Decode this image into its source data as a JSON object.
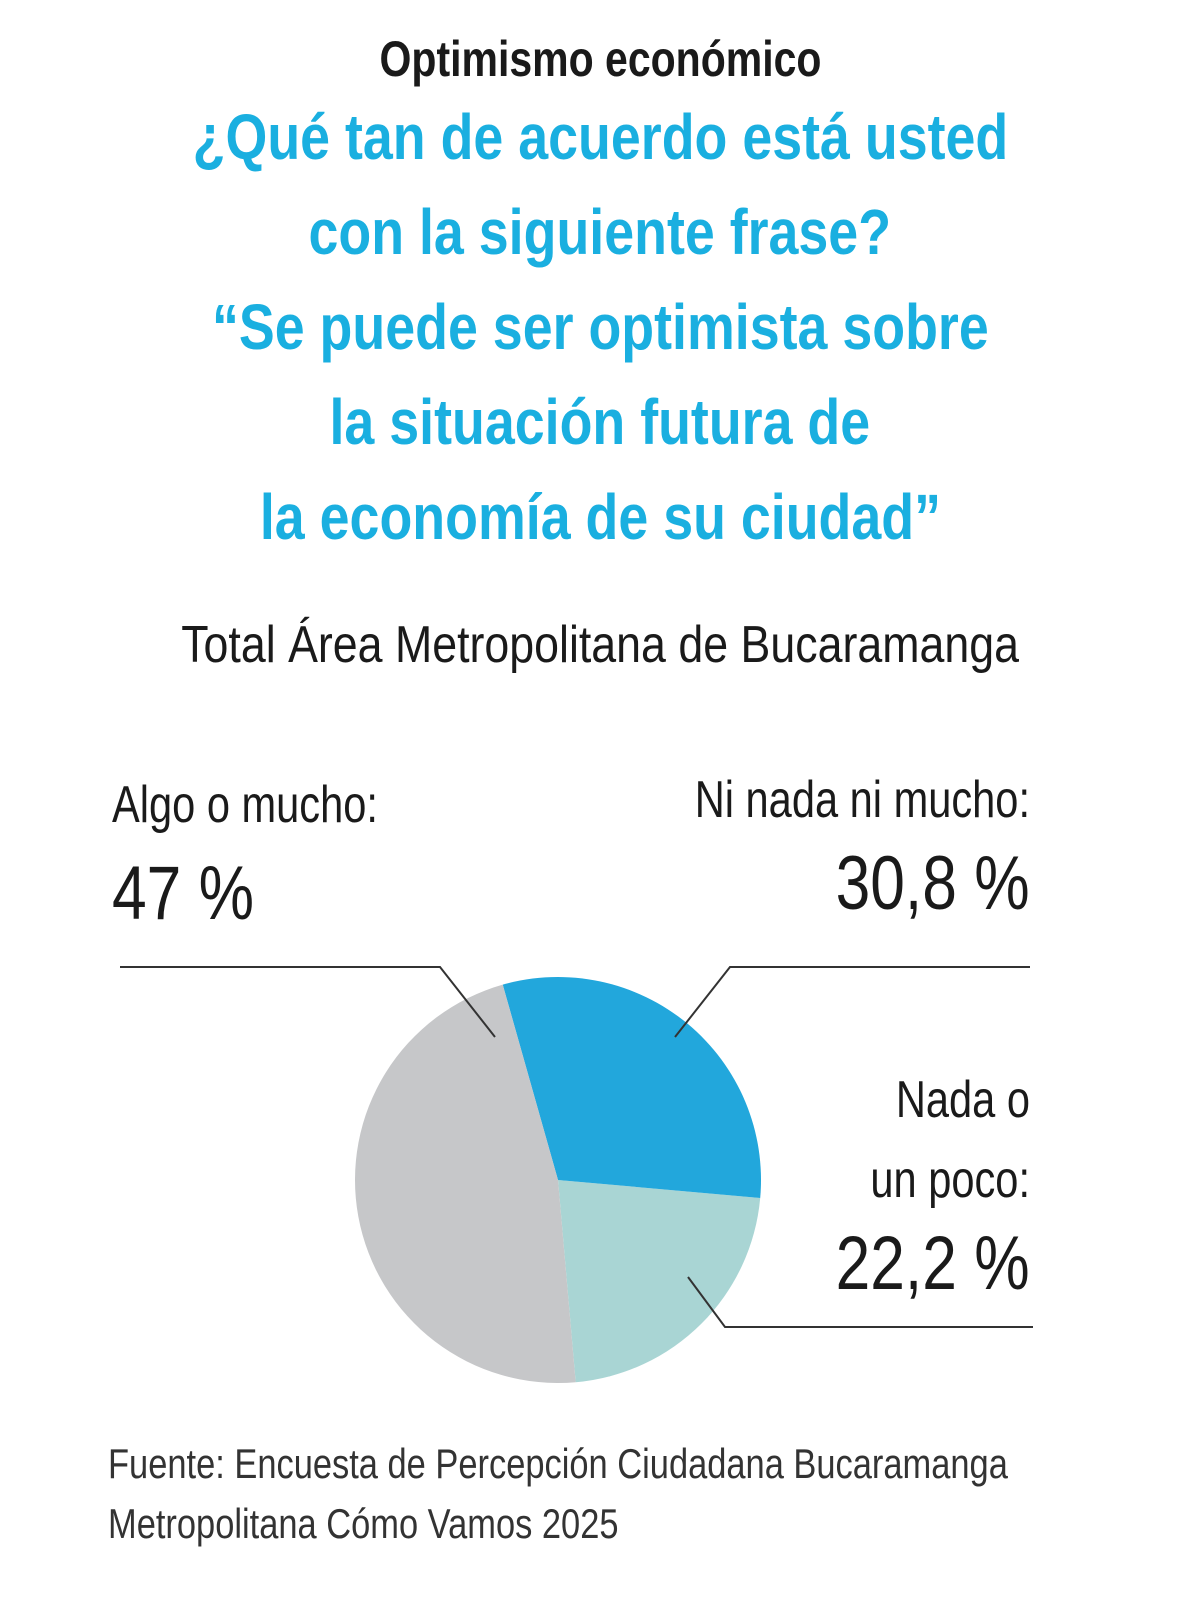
{
  "chart_data": {
    "type": "pie",
    "title": "Optimismo económico",
    "question": [
      "¿Qué tan de acuerdo está usted",
      "con la siguiente frase?",
      "“Se puede ser optimista sobre",
      "la situación futura de",
      "la economía de su ciudad”"
    ],
    "subtitle": "Total Área Metropolitana de Bucaramanga",
    "categories": [
      "Algo o mucho:",
      "Ni nada ni mucho:",
      "Nada o un poco:"
    ],
    "values": [
      47,
      30.8,
      22.2
    ],
    "value_labels": [
      "47 %",
      "30,8 %",
      "22,2 %"
    ],
    "colors": [
      "#c6c7c9",
      "#22a7dc",
      "#a9d5d4"
    ],
    "source": [
      "Fuente: Encuesta de Percepción Ciudadana Bucaramanga",
      "Metropolitana Cómo Vamos 2025"
    ]
  }
}
